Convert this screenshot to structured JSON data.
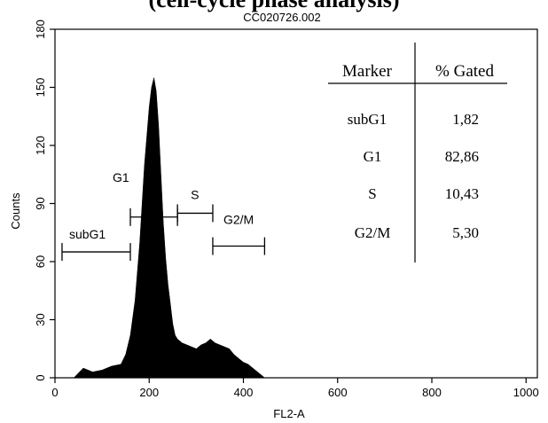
{
  "header_fragment": "(cell-cycle phase analysis)",
  "chart_data": {
    "type": "area",
    "title": "CC020726.002",
    "xlabel": "FL2-A",
    "ylabel": "Counts",
    "xlim": [
      0,
      1024
    ],
    "ylim": [
      0,
      180
    ],
    "x_ticks": [
      0,
      200,
      400,
      600,
      800,
      1000
    ],
    "y_ticks": [
      0,
      30,
      60,
      90,
      120,
      150,
      180
    ],
    "grid": false,
    "series": [
      {
        "color": "#000000",
        "x": [
          40,
          60,
          80,
          100,
          120,
          140,
          150,
          160,
          170,
          180,
          190,
          200,
          205,
          210,
          215,
          220,
          225,
          230,
          235,
          240,
          245,
          250,
          255,
          260,
          270,
          280,
          290,
          300,
          310,
          320,
          330,
          340,
          350,
          360,
          370,
          380,
          390,
          400,
          410,
          420,
          430,
          440,
          445
        ],
        "y": [
          0,
          5,
          3,
          4,
          6,
          7,
          12,
          22,
          40,
          70,
          110,
          140,
          150,
          155,
          148,
          130,
          105,
          80,
          62,
          48,
          38,
          28,
          22,
          20,
          18,
          17,
          16,
          15,
          17,
          18,
          20,
          18,
          17,
          16,
          15,
          12,
          10,
          8,
          7,
          5,
          3,
          1,
          0
        ]
      }
    ],
    "gates": [
      {
        "label": "subG1",
        "x_start": 15,
        "x_end": 160,
        "y": 65
      },
      {
        "label": "G1",
        "x_start": 160,
        "x_end": 260,
        "y": 83
      },
      {
        "label": "S",
        "x_start": 260,
        "x_end": 335,
        "y": 85
      },
      {
        "label": "G2/M",
        "x_start": 335,
        "x_end": 445,
        "y": 68
      }
    ],
    "table": {
      "headers": [
        "Marker",
        "% Gated"
      ],
      "rows": [
        [
          "subG1",
          "1,82"
        ],
        [
          "G1",
          "82,86"
        ],
        [
          "S",
          "10,43"
        ],
        [
          "G2/M",
          "5,30"
        ]
      ]
    }
  }
}
